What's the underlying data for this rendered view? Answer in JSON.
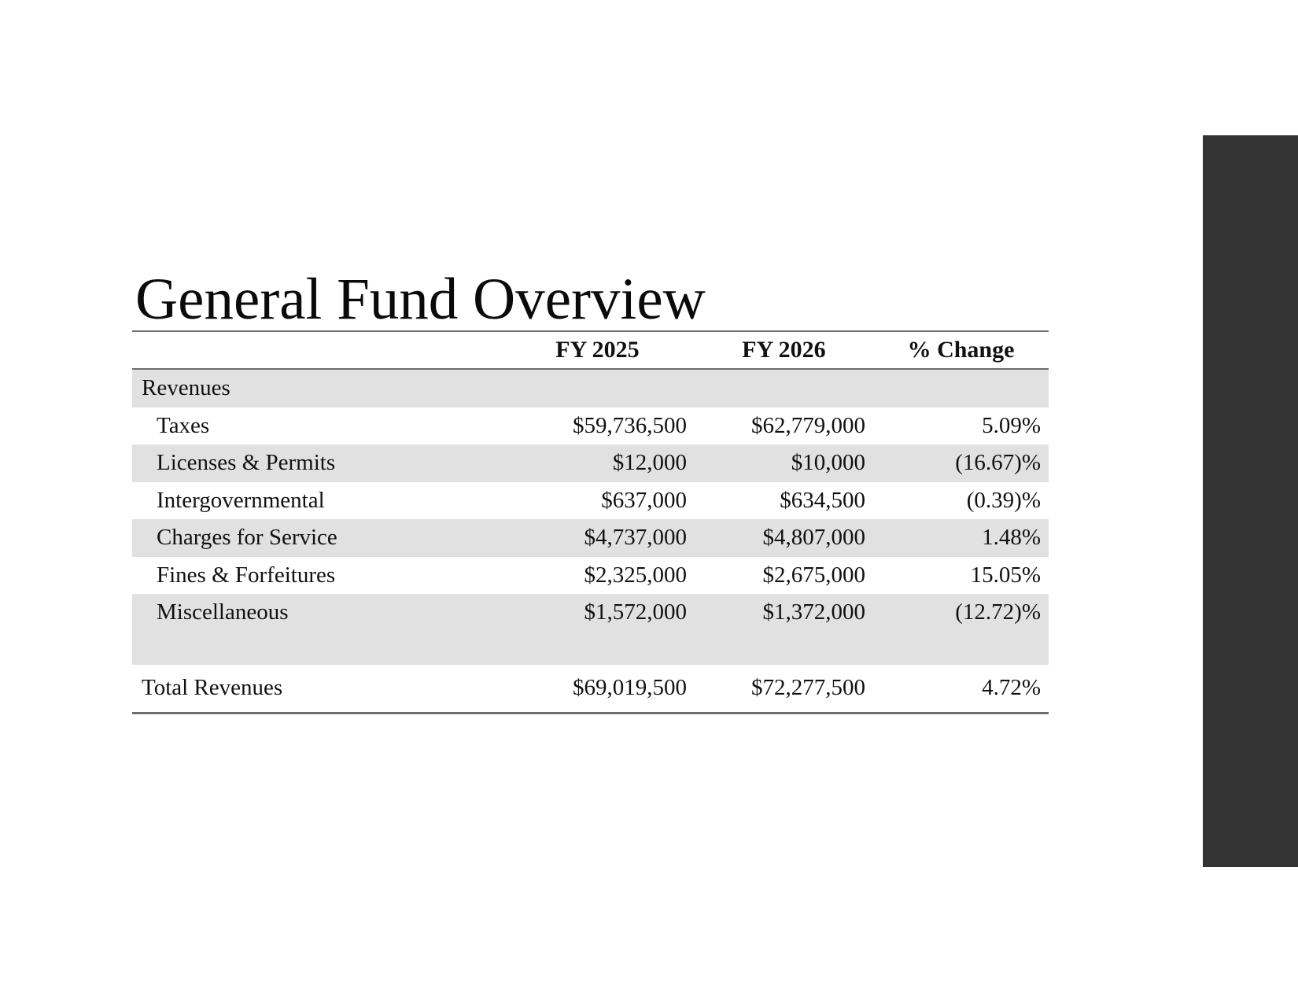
{
  "slide": {
    "title": "General Fund Overview"
  },
  "colors": {
    "accent_bar": "#333333",
    "row_shade": "#e1e1e1",
    "rule": "#6e6e6e"
  },
  "table": {
    "headers": {
      "label": "",
      "fy2025": "FY 2025",
      "fy2026": "FY 2026",
      "change": "% Change"
    },
    "section": {
      "label": "Revenues"
    },
    "rows": [
      {
        "label": "Taxes",
        "fy2025": "$59,736,500",
        "fy2026": "$62,779,000",
        "change": "5.09%"
      },
      {
        "label": "Licenses & Permits",
        "fy2025": "$12,000",
        "fy2026": "$10,000",
        "change": "(16.67)%"
      },
      {
        "label": "Intergovernmental",
        "fy2025": "$637,000",
        "fy2026": "$634,500",
        "change": "(0.39)%"
      },
      {
        "label": "Charges for Service",
        "fy2025": "$4,737,000",
        "fy2026": "$4,807,000",
        "change": "1.48%"
      },
      {
        "label": "Fines & Forfeitures",
        "fy2025": "$2,325,000",
        "fy2026": "$2,675,000",
        "change": "15.05%"
      },
      {
        "label": "Miscellaneous",
        "fy2025": "$1,572,000",
        "fy2026": "$1,372,000",
        "change": "(12.72)%"
      }
    ],
    "total": {
      "label": "Total Revenues",
      "fy2025": "$69,019,500",
      "fy2026": "$72,277,500",
      "change": "4.72%"
    }
  }
}
